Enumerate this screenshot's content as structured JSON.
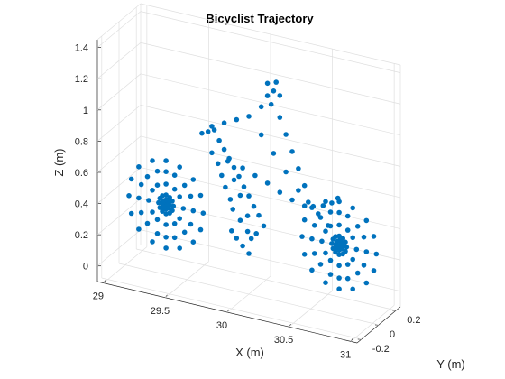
{
  "chart_data": {
    "type": "scatter",
    "title": "Bicyclist Trajectory",
    "xlabel": "X (m)",
    "ylabel": "Y (m)",
    "zlabel": "Z (m)",
    "xlim": [
      28.95,
      31.05
    ],
    "ylim": [
      -0.25,
      0.25
    ],
    "zlim": [
      -0.1,
      1.45
    ],
    "xticks": [
      29,
      29.5,
      30,
      30.5,
      31
    ],
    "xtick_labels": [
      "29",
      "29.5",
      "30",
      "30.5",
      "31"
    ],
    "yticks": [
      -0.2,
      0,
      0.2
    ],
    "ytick_labels": [
      "-0.2",
      "0",
      "0.2"
    ],
    "zticks": [
      0,
      0.2,
      0.4,
      0.6,
      0.8,
      1,
      1.2,
      1.4
    ],
    "ztick_labels": [
      "0",
      "0.2",
      "0.4",
      "0.6",
      "0.8",
      "1",
      "1.2",
      "1.4"
    ],
    "grid": true,
    "marker_color": "#0072bd",
    "series": [
      {
        "points": [
          [
            29.33,
            0,
            0.35
          ],
          [
            29.63,
            0,
            0.35
          ],
          [
            29.61,
            0,
            0.46
          ],
          [
            29.55,
            0,
            0.55
          ],
          [
            29.44,
            0,
            0.61
          ],
          [
            29.33,
            0,
            0.63
          ],
          [
            29.22,
            0,
            0.61
          ],
          [
            29.11,
            0,
            0.55
          ],
          [
            29.05,
            0,
            0.46
          ],
          [
            29.03,
            0,
            0.35
          ],
          [
            29.05,
            0,
            0.24
          ],
          [
            29.11,
            0,
            0.15
          ],
          [
            29.22,
            0,
            0.09
          ],
          [
            29.33,
            0,
            0.07
          ],
          [
            29.44,
            0,
            0.09
          ],
          [
            29.55,
            0,
            0.15
          ],
          [
            29.61,
            0,
            0.24
          ],
          [
            29.55,
            0,
            0.35
          ],
          [
            29.53,
            0,
            0.44
          ],
          [
            29.48,
            0,
            0.5
          ],
          [
            29.4,
            0,
            0.55
          ],
          [
            29.33,
            0,
            0.56
          ],
          [
            29.26,
            0,
            0.55
          ],
          [
            29.18,
            0,
            0.5
          ],
          [
            29.13,
            0,
            0.44
          ],
          [
            29.11,
            0,
            0.35
          ],
          [
            29.13,
            0,
            0.26
          ],
          [
            29.18,
            0,
            0.2
          ],
          [
            29.26,
            0,
            0.15
          ],
          [
            29.33,
            0,
            0.14
          ],
          [
            29.4,
            0,
            0.15
          ],
          [
            29.48,
            0,
            0.2
          ],
          [
            29.53,
            0,
            0.26
          ],
          [
            29.47,
            0,
            0.35
          ],
          [
            29.44,
            0,
            0.42
          ],
          [
            29.4,
            0,
            0.46
          ],
          [
            29.33,
            0,
            0.48
          ],
          [
            29.26,
            0,
            0.46
          ],
          [
            29.22,
            0,
            0.42
          ],
          [
            29.19,
            0,
            0.35
          ],
          [
            29.22,
            0,
            0.28
          ],
          [
            29.26,
            0,
            0.24
          ],
          [
            29.33,
            0,
            0.22
          ],
          [
            29.4,
            0,
            0.24
          ],
          [
            29.44,
            0,
            0.28
          ],
          [
            29.39,
            0,
            0.35
          ],
          [
            29.38,
            0,
            0.38
          ],
          [
            29.36,
            0,
            0.4
          ],
          [
            29.33,
            0,
            0.41
          ],
          [
            29.3,
            0,
            0.4
          ],
          [
            29.28,
            0,
            0.38
          ],
          [
            29.27,
            0,
            0.35
          ],
          [
            29.28,
            0,
            0.32
          ],
          [
            29.3,
            0,
            0.3
          ],
          [
            29.33,
            0,
            0.29
          ],
          [
            29.36,
            0,
            0.3
          ],
          [
            29.38,
            0,
            0.32
          ],
          [
            29.36,
            0,
            0.35
          ],
          [
            29.35,
            0,
            0.37
          ],
          [
            29.33,
            0,
            0.38
          ],
          [
            29.31,
            0,
            0.37
          ],
          [
            29.3,
            0,
            0.35
          ],
          [
            29.31,
            0,
            0.33
          ],
          [
            29.33,
            0,
            0.32
          ],
          [
            29.35,
            0,
            0.33
          ],
          [
            30.73,
            0,
            0.35
          ],
          [
            31.03,
            0,
            0.35
          ],
          [
            31.01,
            0,
            0.46
          ],
          [
            30.95,
            0,
            0.55
          ],
          [
            30.84,
            0,
            0.61
          ],
          [
            30.73,
            0,
            0.63
          ],
          [
            30.62,
            0,
            0.61
          ],
          [
            30.51,
            0,
            0.55
          ],
          [
            30.45,
            0,
            0.46
          ],
          [
            30.43,
            0,
            0.35
          ],
          [
            30.45,
            0,
            0.24
          ],
          [
            30.51,
            0,
            0.15
          ],
          [
            30.62,
            0,
            0.09
          ],
          [
            30.73,
            0,
            0.07
          ],
          [
            30.84,
            0,
            0.09
          ],
          [
            30.95,
            0,
            0.15
          ],
          [
            31.01,
            0,
            0.24
          ],
          [
            30.95,
            0,
            0.35
          ],
          [
            30.93,
            0,
            0.44
          ],
          [
            30.88,
            0,
            0.5
          ],
          [
            30.8,
            0,
            0.55
          ],
          [
            30.73,
            0,
            0.56
          ],
          [
            30.66,
            0,
            0.55
          ],
          [
            30.58,
            0,
            0.5
          ],
          [
            30.53,
            0,
            0.44
          ],
          [
            30.51,
            0,
            0.35
          ],
          [
            30.53,
            0,
            0.26
          ],
          [
            30.58,
            0,
            0.2
          ],
          [
            30.66,
            0,
            0.15
          ],
          [
            30.73,
            0,
            0.14
          ],
          [
            30.8,
            0,
            0.15
          ],
          [
            30.88,
            0,
            0.2
          ],
          [
            30.93,
            0,
            0.26
          ],
          [
            30.87,
            0,
            0.35
          ],
          [
            30.84,
            0,
            0.42
          ],
          [
            30.8,
            0,
            0.46
          ],
          [
            30.73,
            0,
            0.48
          ],
          [
            30.66,
            0,
            0.46
          ],
          [
            30.62,
            0,
            0.42
          ],
          [
            30.59,
            0,
            0.35
          ],
          [
            30.62,
            0,
            0.28
          ],
          [
            30.66,
            0,
            0.24
          ],
          [
            30.73,
            0,
            0.22
          ],
          [
            30.8,
            0,
            0.24
          ],
          [
            30.84,
            0,
            0.28
          ],
          [
            30.79,
            0,
            0.35
          ],
          [
            30.78,
            0,
            0.38
          ],
          [
            30.76,
            0,
            0.4
          ],
          [
            30.73,
            0,
            0.41
          ],
          [
            30.7,
            0,
            0.4
          ],
          [
            30.68,
            0,
            0.38
          ],
          [
            30.67,
            0,
            0.35
          ],
          [
            30.68,
            0,
            0.32
          ],
          [
            30.7,
            0,
            0.3
          ],
          [
            30.73,
            0,
            0.29
          ],
          [
            30.76,
            0,
            0.3
          ],
          [
            30.78,
            0,
            0.32
          ],
          [
            30.76,
            0,
            0.35
          ],
          [
            30.75,
            0,
            0.37
          ],
          [
            30.73,
            0,
            0.38
          ],
          [
            30.71,
            0,
            0.37
          ],
          [
            30.7,
            0,
            0.35
          ],
          [
            30.71,
            0,
            0.33
          ],
          [
            30.73,
            0,
            0.32
          ],
          [
            30.75,
            0,
            0.33
          ],
          [
            29.87,
            0,
            0.42
          ],
          [
            29.93,
            0,
            0.36
          ],
          [
            29.99,
            0,
            0.3
          ],
          [
            29.85,
            0,
            0.48
          ],
          [
            29.81,
            0,
            0.55
          ],
          [
            29.78,
            0,
            0.62
          ],
          [
            29.75,
            0,
            0.69
          ],
          [
            29.7,
            0,
            0.75
          ],
          [
            29.62,
            0,
            0.86
          ],
          [
            29.67,
            0,
            0.88
          ],
          [
            29.72,
            0,
            0.9
          ],
          [
            29.76,
            0,
            0.84
          ],
          [
            29.8,
            0,
            0.79
          ],
          [
            29.84,
            0,
            0.74
          ],
          [
            29.88,
            0,
            0.69
          ],
          [
            29.92,
            0,
            0.64
          ],
          [
            29.96,
            0,
            0.58
          ],
          [
            30.0,
            0,
            0.53
          ],
          [
            30.04,
            0,
            0.47
          ],
          [
            30.08,
            0,
            0.42
          ],
          [
            30.12,
            0,
            0.36
          ],
          [
            30.06,
            0,
            0.3
          ],
          [
            29.99,
            0,
            0.4
          ],
          [
            29.93,
            0,
            0.52
          ],
          [
            29.88,
            0,
            0.61
          ],
          [
            29.83,
            0,
            0.72
          ],
          [
            29.95,
            0,
            0.7
          ],
          [
            30.05,
            0,
            0.67
          ],
          [
            30.15,
            0,
            0.64
          ],
          [
            30.25,
            0,
            0.6
          ],
          [
            30.35,
            0,
            0.57
          ],
          [
            30.45,
            0,
            0.55
          ],
          [
            30.52,
            0,
            0.56
          ],
          [
            30.6,
            0,
            0.58
          ],
          [
            30.67,
            0,
            0.61
          ],
          [
            30.72,
            0,
            0.65
          ],
          [
            30.48,
            0,
            0.58
          ],
          [
            30.56,
            0,
            0.52
          ],
          [
            30.64,
            0,
            0.46
          ],
          [
            30.7,
            0,
            0.4
          ],
          [
            30.4,
            0,
            0.64
          ],
          [
            30.3,
            0,
            0.74
          ],
          [
            30.2,
            0,
            0.84
          ],
          [
            30.1,
            0,
            0.94
          ],
          [
            30.0,
            0,
            1.04
          ],
          [
            30.45,
            0,
            0.68
          ],
          [
            30.4,
            0,
            0.78
          ],
          [
            30.35,
            0,
            0.88
          ],
          [
            30.3,
            0,
            0.98
          ],
          [
            30.25,
            0,
            1.08
          ],
          [
            30.18,
            0,
            1.15
          ],
          [
            30.1,
            0,
            1.12
          ],
          [
            30.15,
            0,
            1.2
          ],
          [
            30.2,
            0,
            1.24
          ],
          [
            30.25,
            0,
            1.22
          ],
          [
            30.15,
            0,
            1.28
          ],
          [
            30.22,
            0,
            1.3
          ],
          [
            29.9,
            0,
            1.0
          ],
          [
            29.8,
            0,
            0.96
          ],
          [
            29.7,
            0,
            0.92
          ],
          [
            29.9,
            0,
            0.24
          ],
          [
            29.95,
            0,
            0.2
          ],
          [
            30.0,
            0,
            0.16
          ],
          [
            29.86,
            0,
            0.28
          ],
          [
            30.02,
            0,
            0.26
          ]
        ]
      }
    ]
  }
}
